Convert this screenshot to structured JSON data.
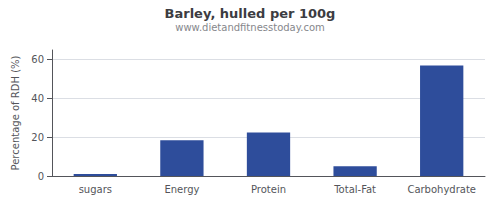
{
  "chart_data": {
    "type": "bar",
    "title": "Barley, hulled per 100g",
    "subtitle": "www.dietandfitnesstoday.com",
    "categories": [
      "sugars",
      "Energy",
      "Protein",
      "Total-Fat",
      "Carbohydrate"
    ],
    "values": [
      1.0,
      18.5,
      22.5,
      5.0,
      57.0
    ],
    "color": "#2e4d9b",
    "ylabel": "Percentage of RDH (%)",
    "ylim": [
      0,
      65
    ],
    "yticks": [
      0,
      20,
      40,
      60
    ],
    "grid": true
  }
}
